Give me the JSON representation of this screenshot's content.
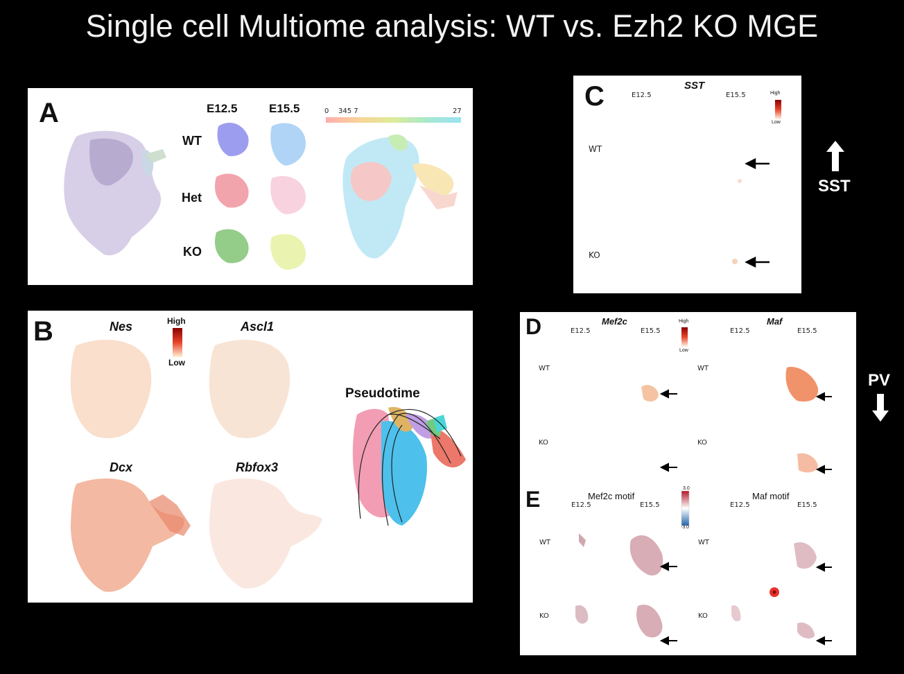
{
  "title": "Single cell Multiome analysis: WT vs. Ezh2 KO MGE",
  "panelA": {
    "label": "A",
    "col1": "E12.5",
    "col2": "E15.5",
    "rows": [
      "WT",
      "Het",
      "KO"
    ],
    "scale_min": "0",
    "scale_ticks": "345 7",
    "scale_max": "27"
  },
  "panelB": {
    "label": "B",
    "genes": [
      "Nes",
      "Ascl1",
      "Dcx",
      "Rbfox3"
    ],
    "legend_high": "High",
    "legend_low": "Low",
    "pseudotime": "Pseudotime"
  },
  "panelC": {
    "label": "C",
    "gene": "SST",
    "col1": "E12.5",
    "col2": "E15.5",
    "rows": [
      "WT",
      "KO"
    ],
    "legend_high": "High",
    "legend_low": "Low"
  },
  "sst_side": {
    "label": "SST"
  },
  "panelD": {
    "label": "D",
    "gene1": "Mef2c",
    "gene2": "Maf",
    "col1": "E12.5",
    "col2": "E15.5",
    "rows": [
      "WT",
      "KO"
    ],
    "legend_high": "High",
    "legend_low": "Low"
  },
  "pv_side": {
    "label": "PV"
  },
  "panelE": {
    "label": "E",
    "motif1": "Mef2c motif",
    "motif2": "Maf motif",
    "col1": "E12.5",
    "col2": "E15.5",
    "rows": [
      "WT",
      "KO"
    ],
    "scale_top": "3.0",
    "scale_bottom": "-3.0"
  },
  "colors": {
    "background": "#000000",
    "panel": "#ffffff",
    "title": "#f2f2f2"
  }
}
